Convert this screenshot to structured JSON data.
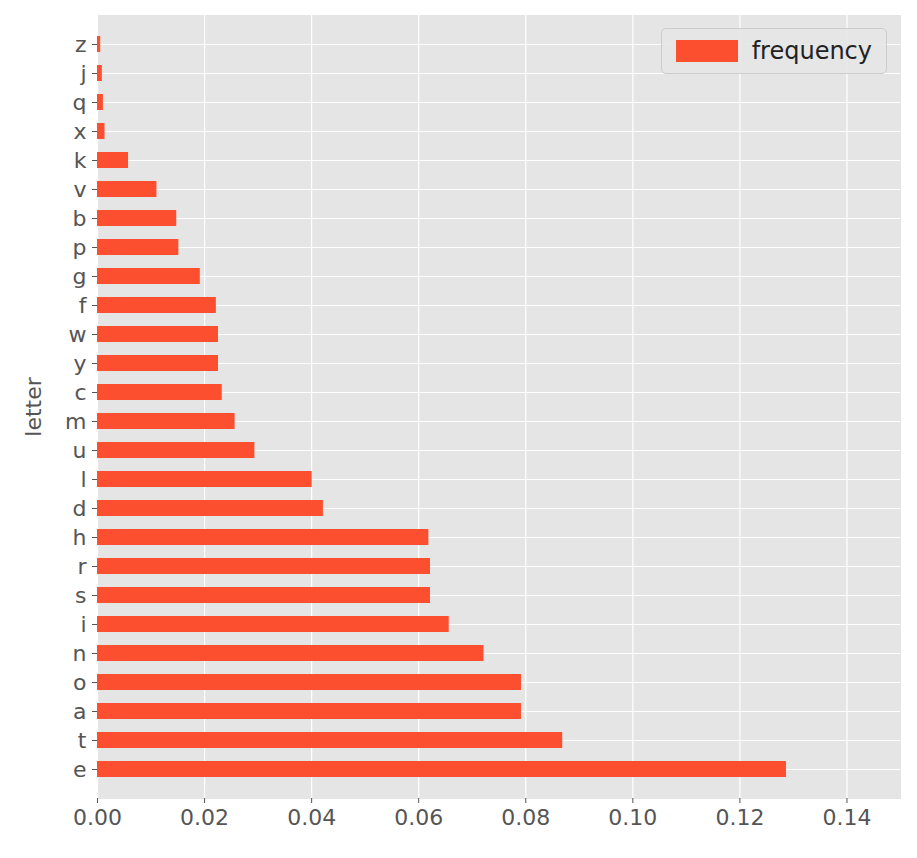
{
  "chart_data": {
    "type": "bar",
    "orientation": "horizontal",
    "y_label": "letter",
    "categories": [
      "e",
      "t",
      "a",
      "o",
      "n",
      "i",
      "s",
      "r",
      "h",
      "d",
      "l",
      "u",
      "m",
      "c",
      "y",
      "w",
      "f",
      "g",
      "p",
      "b",
      "v",
      "k",
      "x",
      "q",
      "j",
      "z"
    ],
    "series": [
      {
        "name": "frequency",
        "color": "#fc4f30",
        "values": [
          0.1287,
          0.0869,
          0.0792,
          0.0792,
          0.0722,
          0.0657,
          0.0622,
          0.0622,
          0.0619,
          0.0422,
          0.0401,
          0.0294,
          0.0257,
          0.0233,
          0.0226,
          0.0226,
          0.0222,
          0.0192,
          0.0152,
          0.0148,
          0.0111,
          0.0058,
          0.0014,
          0.0011,
          0.0009,
          0.0006
        ]
      }
    ],
    "xlim": [
      0,
      0.15
    ],
    "xticks": [
      {
        "value": 0,
        "label": "0.00"
      },
      {
        "value": 0.02,
        "label": "0.02"
      },
      {
        "value": 0.04,
        "label": "0.04"
      },
      {
        "value": 0.06,
        "label": "0.06"
      },
      {
        "value": 0.08,
        "label": "0.08"
      },
      {
        "value": 0.1,
        "label": "0.10"
      },
      {
        "value": 0.12,
        "label": "0.12"
      },
      {
        "value": 0.14,
        "label": "0.14"
      }
    ],
    "grid": true,
    "legend": "upper right"
  }
}
